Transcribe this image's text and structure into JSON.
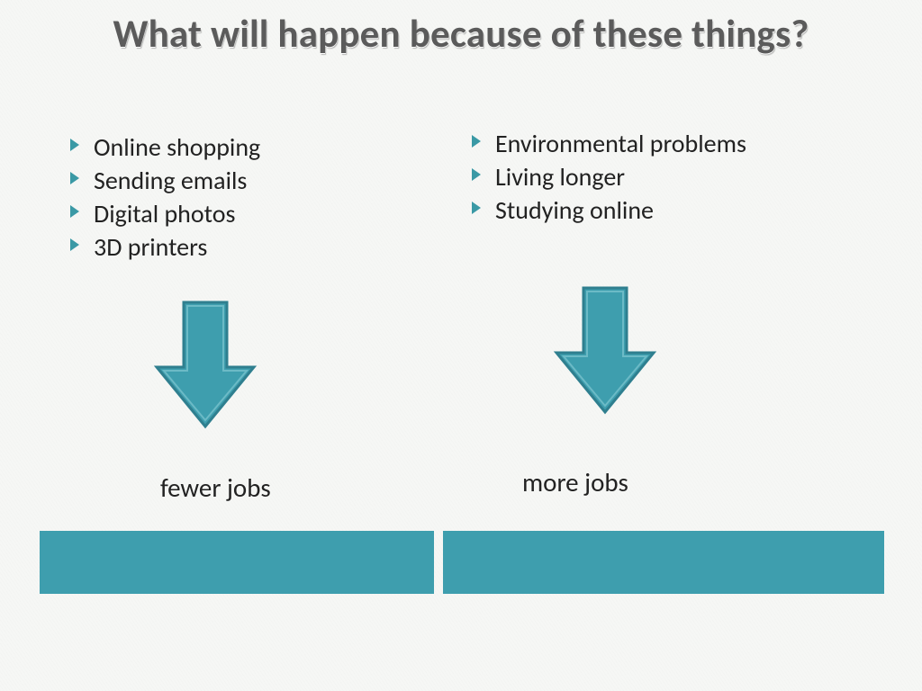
{
  "title": "What will happen because of these things?",
  "columns": {
    "left": {
      "bullets": [
        "Online shopping",
        "Sending emails",
        "Digital photos",
        "3D printers"
      ],
      "result": "fewer jobs"
    },
    "right": {
      "bullets": [
        "Environmental problems",
        "Living longer",
        "Studying online"
      ],
      "result": "more jobs"
    }
  },
  "style": {
    "bullet_color": "#3a99a5",
    "arrow": {
      "fill": "#3e9eae",
      "stroke_outer": "#2f7f8f",
      "stroke_inner": "#6cbac6",
      "width": 120,
      "height": 150
    },
    "bar_color": "#3e9eae",
    "title_color": "#5b5b5b",
    "text_color": "#222222"
  }
}
